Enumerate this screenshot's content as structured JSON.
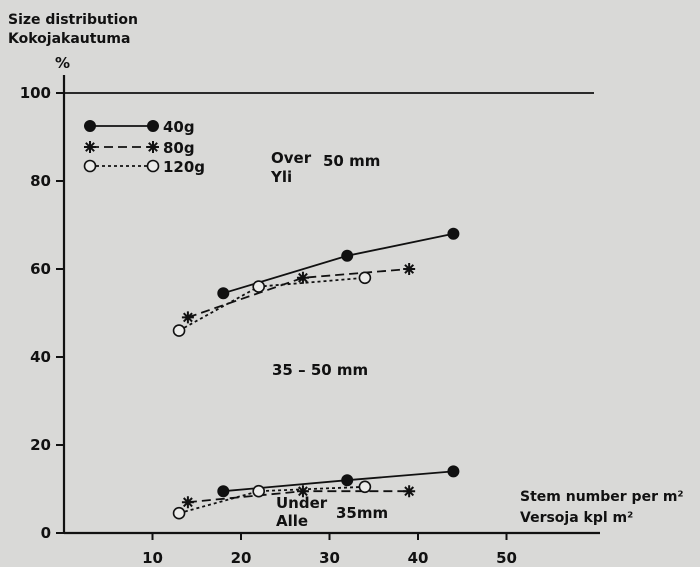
{
  "chart_data": {
    "type": "line",
    "title": "Size distribution",
    "subtitle": "Kokojakautuma",
    "ylabel": "%",
    "xlabel": "Stem number per m²",
    "xlabel2": "Versoja kpl m²",
    "xlim": [
      0,
      55
    ],
    "ylim": [
      0,
      100
    ],
    "x_ticks": [
      10,
      20,
      30,
      40,
      50
    ],
    "y_ticks": [
      0,
      20,
      40,
      60,
      80,
      100
    ],
    "reference_line_y": 100,
    "legend": {
      "placement": "top-left",
      "entries": [
        {
          "name": "40g",
          "marker": "filled-circle",
          "line": "solid"
        },
        {
          "name": "80g",
          "marker": "star",
          "line": "dashed"
        },
        {
          "name": "120g",
          "marker": "open-circle",
          "line": "dotted"
        }
      ]
    },
    "region_labels": {
      "over_1": "Over",
      "over_2": "Yli",
      "over_size": "50 mm",
      "mid": "35 – 50 mm",
      "under_1": "Under",
      "under_2": "Alle",
      "under_size": "35mm"
    },
    "series": [
      {
        "name": "40g",
        "group": "over",
        "x": [
          18,
          32,
          44
        ],
        "y": [
          54.5,
          63,
          68
        ]
      },
      {
        "name": "80g",
        "group": "over",
        "x": [
          14,
          27,
          39
        ],
        "y": [
          49,
          58,
          60
        ]
      },
      {
        "name": "120g",
        "group": "over",
        "x": [
          13,
          22,
          34
        ],
        "y": [
          46,
          56,
          58
        ]
      },
      {
        "name": "40g",
        "group": "under",
        "x": [
          18,
          32,
          44
        ],
        "y": [
          9.5,
          12,
          14
        ]
      },
      {
        "name": "80g",
        "group": "under",
        "x": [
          14,
          27,
          39
        ],
        "y": [
          7,
          9.5,
          9.5
        ]
      },
      {
        "name": "120g",
        "group": "under",
        "x": [
          13,
          22,
          34
        ],
        "y": [
          4.5,
          9.5,
          10.5
        ]
      }
    ],
    "grid": false
  }
}
